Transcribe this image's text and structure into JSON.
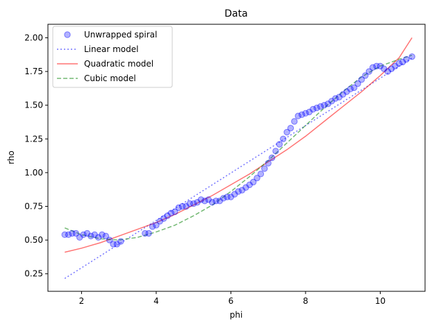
{
  "chart_data": {
    "type": "scatter",
    "title": "Data",
    "xlabel": "phi",
    "ylabel": "rho",
    "xlim": [
      1.1,
      11.2
    ],
    "ylim": [
      0.12,
      2.1
    ],
    "xticks": [
      2,
      4,
      6,
      8,
      10
    ],
    "yticks": [
      0.25,
      0.5,
      0.75,
      1.0,
      1.25,
      1.5,
      1.75,
      2.0
    ],
    "xtick_labels": [
      "2",
      "4",
      "6",
      "8",
      "10"
    ],
    "ytick_labels": [
      "0.25",
      "0.50",
      "0.75",
      "1.00",
      "1.25",
      "1.50",
      "1.75",
      "2.00"
    ],
    "grid": false,
    "legend_position": "top-left",
    "series": [
      {
        "name": "Unwrapped spiral",
        "kind": "scatter",
        "color": "#0000ff",
        "x": [
          1.55,
          1.65,
          1.75,
          1.85,
          1.95,
          2.05,
          2.15,
          2.25,
          2.35,
          2.45,
          2.55,
          2.65,
          2.75,
          2.85,
          2.95,
          3.05,
          3.7,
          3.8,
          3.9,
          4.0,
          4.1,
          4.2,
          4.3,
          4.4,
          4.5,
          4.6,
          4.7,
          4.8,
          4.9,
          5.0,
          5.1,
          5.2,
          5.3,
          5.4,
          5.5,
          5.6,
          5.7,
          5.8,
          5.9,
          6.0,
          6.1,
          6.2,
          6.3,
          6.4,
          6.5,
          6.6,
          6.7,
          6.8,
          6.9,
          7.0,
          7.1,
          7.2,
          7.3,
          7.4,
          7.5,
          7.6,
          7.7,
          7.8,
          7.9,
          8.0,
          8.1,
          8.2,
          8.3,
          8.4,
          8.5,
          8.6,
          8.7,
          8.8,
          8.9,
          9.0,
          9.1,
          9.2,
          9.3,
          9.4,
          9.5,
          9.6,
          9.7,
          9.8,
          9.9,
          10.0,
          10.1,
          10.2,
          10.3,
          10.4,
          10.5,
          10.6,
          10.7,
          10.85
        ],
        "y": [
          0.54,
          0.54,
          0.55,
          0.55,
          0.52,
          0.54,
          0.55,
          0.53,
          0.54,
          0.52,
          0.54,
          0.53,
          0.5,
          0.47,
          0.47,
          0.49,
          0.55,
          0.55,
          0.6,
          0.61,
          0.64,
          0.66,
          0.68,
          0.7,
          0.71,
          0.74,
          0.75,
          0.75,
          0.77,
          0.77,
          0.78,
          0.8,
          0.79,
          0.8,
          0.78,
          0.79,
          0.79,
          0.81,
          0.82,
          0.82,
          0.84,
          0.86,
          0.87,
          0.89,
          0.91,
          0.93,
          0.96,
          0.99,
          1.03,
          1.07,
          1.11,
          1.16,
          1.21,
          1.25,
          1.3,
          1.33,
          1.38,
          1.42,
          1.43,
          1.44,
          1.45,
          1.47,
          1.48,
          1.49,
          1.5,
          1.51,
          1.53,
          1.55,
          1.56,
          1.58,
          1.6,
          1.62,
          1.63,
          1.66,
          1.69,
          1.72,
          1.75,
          1.78,
          1.79,
          1.79,
          1.77,
          1.75,
          1.77,
          1.79,
          1.81,
          1.82,
          1.84,
          1.86
        ]
      },
      {
        "name": "Linear model",
        "kind": "line",
        "style": "dotted",
        "color": "#0000ff",
        "x": [
          1.55,
          10.85
        ],
        "y": [
          0.215,
          1.85
        ]
      },
      {
        "name": "Quadratic model",
        "kind": "line",
        "style": "solid",
        "color": "#ff0000",
        "x": [
          1.55,
          2.0,
          2.5,
          3.0,
          3.5,
          4.0,
          4.5,
          5.0,
          5.5,
          6.0,
          6.5,
          7.0,
          7.5,
          8.0,
          8.5,
          9.0,
          9.5,
          10.0,
          10.5,
          10.85
        ],
        "y": [
          0.41,
          0.44,
          0.48,
          0.53,
          0.58,
          0.63,
          0.69,
          0.76,
          0.83,
          0.91,
          0.99,
          1.08,
          1.17,
          1.27,
          1.38,
          1.49,
          1.6,
          1.72,
          1.85,
          2.0
        ]
      },
      {
        "name": "Cubic model",
        "kind": "line",
        "style": "dashed",
        "color": "#008000",
        "x": [
          1.55,
          2.0,
          2.5,
          3.0,
          3.5,
          4.0,
          4.5,
          5.0,
          5.5,
          6.0,
          6.5,
          7.0,
          7.5,
          8.0,
          8.5,
          9.0,
          9.5,
          10.0,
          10.5,
          10.85
        ],
        "y": [
          0.59,
          0.54,
          0.51,
          0.5,
          0.52,
          0.56,
          0.61,
          0.68,
          0.76,
          0.86,
          0.97,
          1.09,
          1.22,
          1.35,
          1.48,
          1.6,
          1.71,
          1.79,
          1.84,
          1.87
        ]
      }
    ]
  }
}
